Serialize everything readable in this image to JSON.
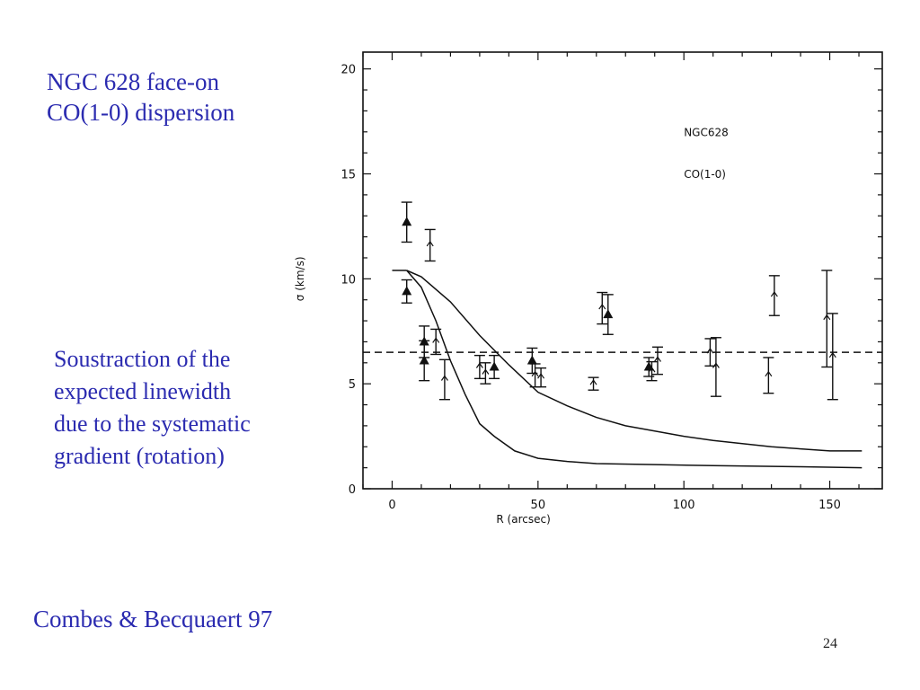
{
  "slide": {
    "title_lines": [
      "NGC 628 face-on",
      "CO(1-0) dispersion"
    ],
    "note_lines": [
      "Soustraction of the",
      "expected linewidth",
      "due to the systematic",
      "gradient (rotation)"
    ],
    "citation": "Combes & Becquaert 97",
    "page_number": "24"
  },
  "chart_data": {
    "type": "scatter",
    "xlabel": "R (arcsec)",
    "ylabel": "σ (km/s)",
    "xlim": [
      -10,
      168
    ],
    "ylim": [
      0,
      20.8
    ],
    "xticks": [
      0,
      50,
      100,
      150
    ],
    "yticks": [
      0,
      5,
      10,
      15,
      20
    ],
    "annotations": [
      "NGC628",
      "CO(1-0)"
    ],
    "grid": false,
    "series": [
      {
        "marker": "filled-triangle",
        "points": [
          {
            "x": 5,
            "y": 12.7,
            "err": 0.95
          },
          {
            "x": 5,
            "y": 9.4,
            "err": 0.55
          },
          {
            "x": 11,
            "y": 7.0,
            "err": 0.75
          },
          {
            "x": 11,
            "y": 6.1,
            "err": 0.95
          },
          {
            "x": 35,
            "y": 5.8,
            "err": 0.55
          },
          {
            "x": 48,
            "y": 6.1,
            "err": 0.6
          },
          {
            "x": 74,
            "y": 8.3,
            "err": 0.95
          },
          {
            "x": 88,
            "y": 5.8,
            "err": 0.45
          }
        ]
      },
      {
        "marker": "open-arrow",
        "points": [
          {
            "x": 13,
            "y": 11.6,
            "err": 0.75
          },
          {
            "x": 15,
            "y": 7.0,
            "err": 0.6
          },
          {
            "x": 18,
            "y": 5.2,
            "err": 0.95
          },
          {
            "x": 30,
            "y": 5.8,
            "err": 0.55
          },
          {
            "x": 32,
            "y": 5.5,
            "err": 0.5
          },
          {
            "x": 49,
            "y": 5.4,
            "err": 0.55
          },
          {
            "x": 51,
            "y": 5.3,
            "err": 0.45
          },
          {
            "x": 69,
            "y": 5.0,
            "err": 0.3
          },
          {
            "x": 72,
            "y": 8.6,
            "err": 0.75
          },
          {
            "x": 89,
            "y": 5.6,
            "err": 0.45
          },
          {
            "x": 91,
            "y": 6.1,
            "err": 0.65
          },
          {
            "x": 109,
            "y": 6.5,
            "err": 0.65
          },
          {
            "x": 111,
            "y": 5.8,
            "err": 1.4
          },
          {
            "x": 129,
            "y": 5.4,
            "err": 0.85
          },
          {
            "x": 131,
            "y": 9.2,
            "err": 0.95
          },
          {
            "x": 149,
            "y": 8.1,
            "err": 2.3
          },
          {
            "x": 151,
            "y": 6.3,
            "err": 2.05
          }
        ]
      }
    ],
    "curves": [
      {
        "style": "solid",
        "points": [
          [
            5,
            10.4
          ],
          [
            10,
            10.1
          ],
          [
            20,
            8.9
          ],
          [
            30,
            7.3
          ],
          [
            40,
            5.9
          ],
          [
            50,
            4.6
          ],
          [
            60,
            3.95
          ],
          [
            70,
            3.4
          ],
          [
            80,
            3.0
          ],
          [
            90,
            2.75
          ],
          [
            100,
            2.5
          ],
          [
            110,
            2.3
          ],
          [
            120,
            2.15
          ],
          [
            130,
            2.0
          ],
          [
            140,
            1.9
          ],
          [
            150,
            1.8
          ],
          [
            161,
            1.8
          ]
        ]
      },
      {
        "style": "solid",
        "points": [
          [
            5,
            10.4
          ],
          [
            10,
            9.6
          ],
          [
            15,
            8.0
          ],
          [
            20,
            6.1
          ],
          [
            25,
            4.5
          ],
          [
            30,
            3.1
          ],
          [
            35,
            2.5
          ],
          [
            42,
            1.8
          ],
          [
            50,
            1.45
          ],
          [
            60,
            1.3
          ],
          [
            70,
            1.2
          ],
          [
            90,
            1.15
          ],
          [
            110,
            1.1
          ],
          [
            140,
            1.05
          ],
          [
            161,
            1.0
          ]
        ]
      },
      {
        "style": "solid",
        "points": [
          [
            0,
            10.4
          ],
          [
            5,
            10.4
          ]
        ]
      },
      {
        "style": "dashed",
        "points": [
          [
            -10,
            6.5
          ],
          [
            168,
            6.5
          ]
        ]
      }
    ]
  }
}
